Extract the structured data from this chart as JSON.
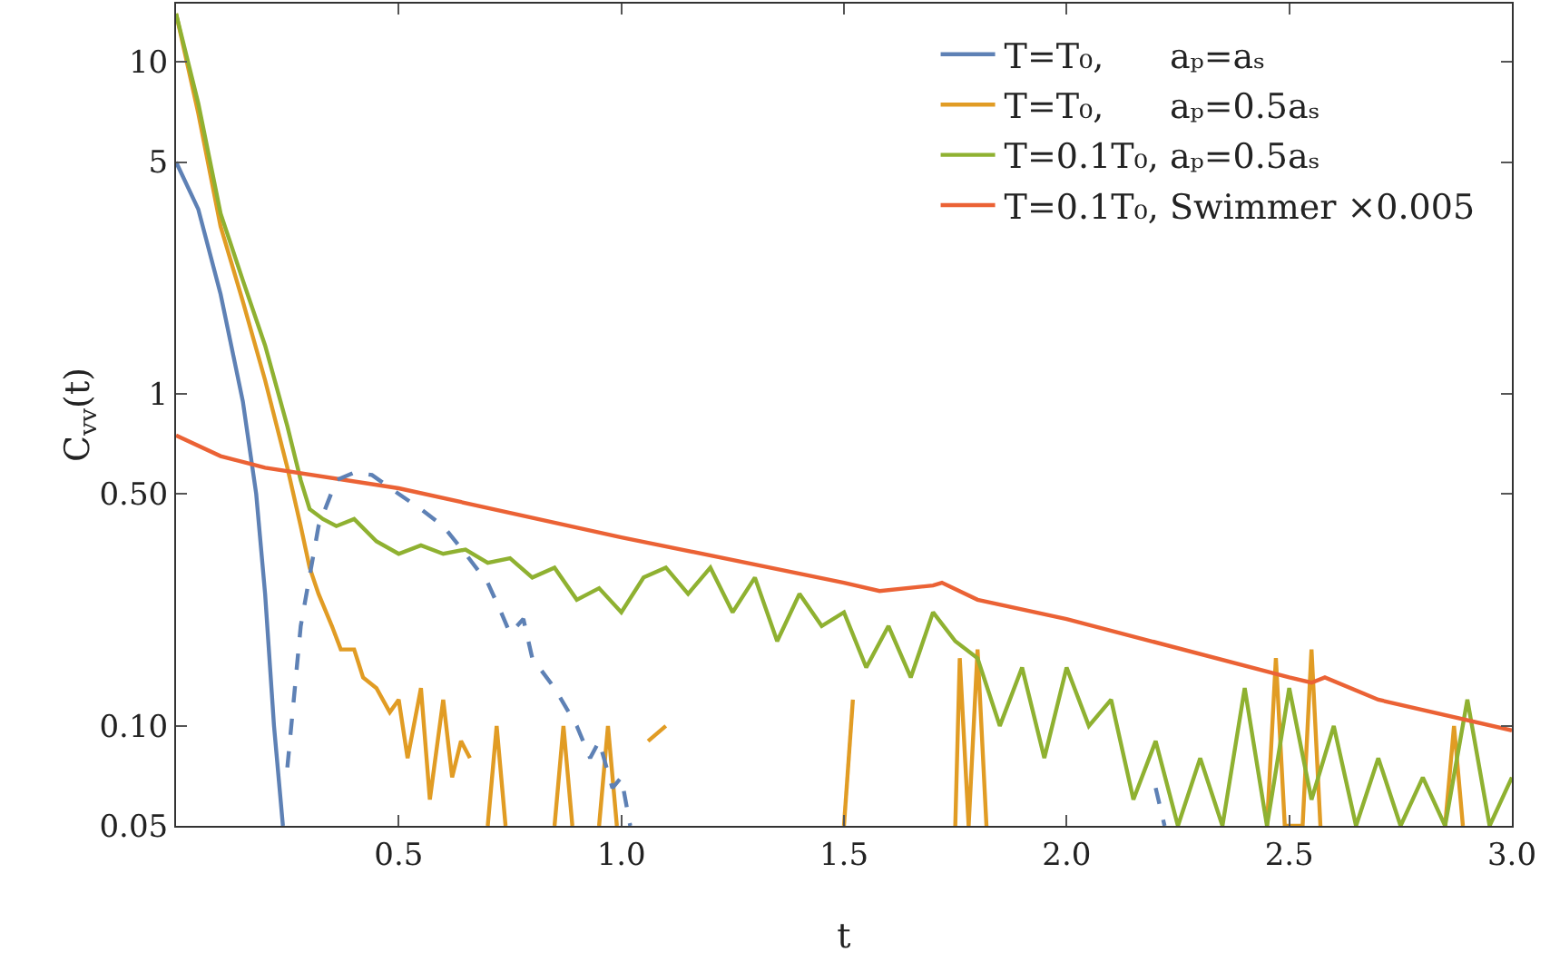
{
  "chart_data": {
    "type": "line",
    "xlabel": "t",
    "ylabel": "C$_{vv}$(t)",
    "log": "y",
    "grid": false,
    "legend": "top right",
    "marker": "none",
    "xlim": [
      0,
      3.0
    ],
    "xticks": [
      0.5,
      {
        "value": 1,
        "label": "1.0"
      },
      1.5,
      {
        "value": 2,
        "label": "2.0"
      },
      2.5,
      {
        "value": 3,
        "label": "3.0"
      }
    ],
    "ylim": [
      0.05,
      15
    ],
    "yticks": [
      0.05,
      {
        "value": 0.1,
        "label": "0.10"
      },
      {
        "value": 0.5,
        "label": "0.50"
      },
      1,
      5,
      10
    ],
    "series": [
      {
        "name": "T=T₀,      aₚ=aₛ",
        "color": "#5e81b5",
        "line_style": "solid",
        "x": [
          0,
          0.05,
          0.1,
          0.15,
          0.18,
          0.2,
          0.22,
          0.24
        ],
        "values": [
          5,
          3.6,
          2.0,
          0.95,
          0.5,
          0.25,
          0.1,
          0.05
        ]
      },
      {
        "name": "T=T₀,      aₚ=0.5aₛ",
        "color": "#e19c24",
        "line_style": "solid",
        "x": [
          0,
          0.05,
          0.1,
          0.15,
          0.2,
          0.25,
          0.28,
          0.3,
          0.32,
          0.35,
          0.37,
          0.4,
          0.42,
          0.45,
          0.48,
          0.5,
          0.52,
          0.55,
          0.57,
          0.6,
          0.62,
          0.64,
          0.66,
          0.68,
          0.7,
          0.72,
          0.74,
          0.8,
          0.85,
          0.87,
          0.89,
          0.92,
          0.95,
          0.97,
          0.99,
          1.02,
          1.06,
          1.1,
          1.48,
          1.5,
          1.52,
          1.6,
          1.75,
          1.76,
          1.78,
          1.8,
          1.82,
          1.9,
          2.45,
          2.47,
          2.49,
          2.53,
          2.55,
          2.57,
          2.7,
          2.85,
          2.87,
          2.89
        ],
        "values": [
          14,
          7,
          3.2,
          1.9,
          1.1,
          0.6,
          0.4,
          0.3,
          0.25,
          0.2,
          0.17,
          0.17,
          0.14,
          0.13,
          0.11,
          0.12,
          0.08,
          0.13,
          0.06,
          0.12,
          0.07,
          0.09,
          0.08,
          null,
          0.05,
          0.1,
          0.05,
          null,
          0.05,
          0.1,
          0.05,
          null,
          0.05,
          0.1,
          0.05,
          null,
          0.09,
          0.1,
          null,
          0.05,
          0.12,
          null,
          0.05,
          0.16,
          0.05,
          0.17,
          0.05,
          null,
          0.05,
          0.16,
          0.05,
          0.05,
          0.17,
          0.05,
          null,
          0.05,
          0.1,
          0.05
        ]
      },
      {
        "name": "T=0.1T₀, aₚ=0.5aₛ",
        "color": "#8fb131",
        "line_style": "solid",
        "x": [
          0,
          0.05,
          0.1,
          0.15,
          0.2,
          0.25,
          0.28,
          0.3,
          0.33,
          0.36,
          0.4,
          0.45,
          0.5,
          0.55,
          0.6,
          0.65,
          0.7,
          0.75,
          0.8,
          0.85,
          0.9,
          0.95,
          1.0,
          1.05,
          1.1,
          1.15,
          1.2,
          1.25,
          1.3,
          1.35,
          1.4,
          1.45,
          1.5,
          1.55,
          1.6,
          1.65,
          1.7,
          1.75,
          1.8,
          1.85,
          1.9,
          1.95,
          2.0,
          2.05,
          2.1,
          2.15,
          2.2,
          2.25,
          2.3,
          2.35,
          2.4,
          2.45,
          2.5,
          2.55,
          2.6,
          2.65,
          2.7,
          2.75,
          2.8,
          2.85,
          2.9,
          2.95,
          3.0
        ],
        "values": [
          14,
          7.5,
          3.5,
          2.2,
          1.4,
          0.8,
          0.55,
          0.45,
          0.42,
          0.4,
          0.42,
          0.36,
          0.33,
          0.35,
          0.33,
          0.34,
          0.31,
          0.32,
          0.28,
          0.3,
          0.24,
          0.26,
          0.22,
          0.28,
          0.3,
          0.25,
          0.3,
          0.22,
          0.28,
          0.18,
          0.25,
          0.2,
          0.22,
          0.15,
          0.2,
          0.14,
          0.22,
          0.18,
          0.16,
          0.1,
          0.15,
          0.08,
          0.15,
          0.1,
          0.12,
          0.06,
          0.09,
          0.05,
          0.08,
          0.05,
          0.13,
          0.05,
          0.13,
          0.06,
          0.1,
          0.05,
          0.08,
          0.05,
          0.07,
          0.05,
          0.12,
          0.05,
          0.07
        ]
      },
      {
        "name": "T=0.1T₀, Swimmer ×0.005",
        "color": "#eb6235",
        "line_style": "solid",
        "x": [
          0,
          0.1,
          0.2,
          0.5,
          1.0,
          1.5,
          1.58,
          1.7,
          1.72,
          1.8,
          2.0,
          2.5,
          2.55,
          2.58,
          2.7,
          3.0
        ],
        "values": [
          0.75,
          0.65,
          0.6,
          0.52,
          0.37,
          0.27,
          0.255,
          0.265,
          0.27,
          0.24,
          0.21,
          0.14,
          0.135,
          0.14,
          0.12,
          0.097
        ]
      },
      {
        "color": "#5e81b5",
        "line_style": "dashed",
        "x": [
          0.25,
          0.28,
          0.32,
          0.36,
          0.4,
          0.44,
          0.5,
          0.55,
          0.6,
          0.65,
          0.7,
          0.73,
          0.75,
          0.78,
          0.8,
          0.85,
          0.9,
          0.93,
          0.95,
          0.98,
          1.0,
          1.02,
          1.5,
          2.2,
          2.22
        ],
        "values": [
          0.075,
          0.2,
          0.4,
          0.55,
          0.58,
          0.57,
          0.5,
          0.45,
          0.4,
          0.33,
          0.27,
          0.22,
          0.19,
          0.21,
          0.16,
          0.13,
          0.1,
          0.08,
          0.09,
          0.065,
          0.07,
          0.05,
          null,
          0.065,
          0.05
        ]
      }
    ]
  }
}
